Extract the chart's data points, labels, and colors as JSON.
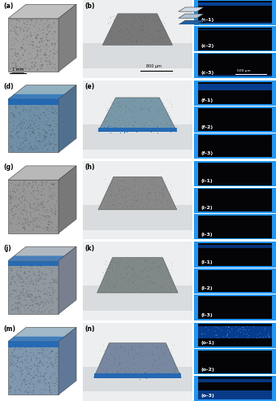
{
  "figsize": [
    3.45,
    5.0
  ],
  "dpi": 100,
  "background": "#ffffff",
  "col1_labels": [
    "(a)",
    "(d)",
    "(g)",
    "(j)",
    "(m)"
  ],
  "col2_labels": [
    "(b)",
    "(e)",
    "(h)",
    "(k)",
    "(n)"
  ],
  "col3_sublabels": [
    [
      "(c-1)",
      "(c-2)",
      "(c-3)"
    ],
    [
      "(f-1)",
      "(f-2)",
      "(f-3)"
    ],
    [
      "(i-1)",
      "(i-2)",
      "(i-3)"
    ],
    [
      "(l-1)",
      "(l-2)",
      "(l-3)"
    ],
    [
      "(o-1)",
      "(o-2)",
      "(o-3)"
    ]
  ],
  "blue_border": "#2196F3",
  "scale_bar_col1": "1 mm",
  "scale_bar_col2": "800 μm",
  "scale_bar_col3": "500 μm",
  "col1_colors": [
    {
      "front": "#A0A0A0",
      "top": "#C0C0C0",
      "right": "#808080",
      "blue": false
    },
    {
      "front": "#7090A8",
      "top": "#90B0C0",
      "right": "#507090",
      "blue": true
    },
    {
      "front": "#989898",
      "top": "#B8B8B8",
      "right": "#787878",
      "blue": false
    },
    {
      "front": "#9098A0",
      "top": "#B0B8C0",
      "right": "#788090",
      "blue": true
    },
    {
      "front": "#8098B0",
      "top": "#A0B8C8",
      "right": "#607898",
      "blue": true
    }
  ],
  "col2_configs": [
    {
      "bg": "#E8EAEC",
      "sample_color": "#787878",
      "base_color": "#D8DCDE",
      "blue_base": false
    },
    {
      "bg": "#E8EAEC",
      "sample_color": "#7898A8",
      "base_color": "#D8DCDE",
      "blue_base": true
    },
    {
      "bg": "#E8EAEC",
      "sample_color": "#888888",
      "base_color": "#D8DCDE",
      "blue_base": false
    },
    {
      "bg": "#E8EAEC",
      "sample_color": "#808888",
      "base_color": "#D8DCDE",
      "blue_base": false
    },
    {
      "bg": "#E8EAEC",
      "sample_color": "#7888A0",
      "base_color": "#D8DCDE",
      "blue_base": true
    }
  ],
  "col3_configs": [
    {
      "top_blue": true,
      "mid_blue": false,
      "bot_blue": false,
      "top_has_scan": true
    },
    {
      "top_blue": false,
      "mid_blue": false,
      "bot_blue": false,
      "top_has_scan": false
    },
    {
      "top_blue": false,
      "mid_blue": false,
      "bot_blue": false,
      "top_has_scan": false
    },
    {
      "top_blue": true,
      "mid_blue": false,
      "bot_blue": false,
      "top_has_scan": false
    },
    {
      "top_blue": true,
      "mid_blue": false,
      "bot_blue": true,
      "top_has_scan": false
    }
  ]
}
